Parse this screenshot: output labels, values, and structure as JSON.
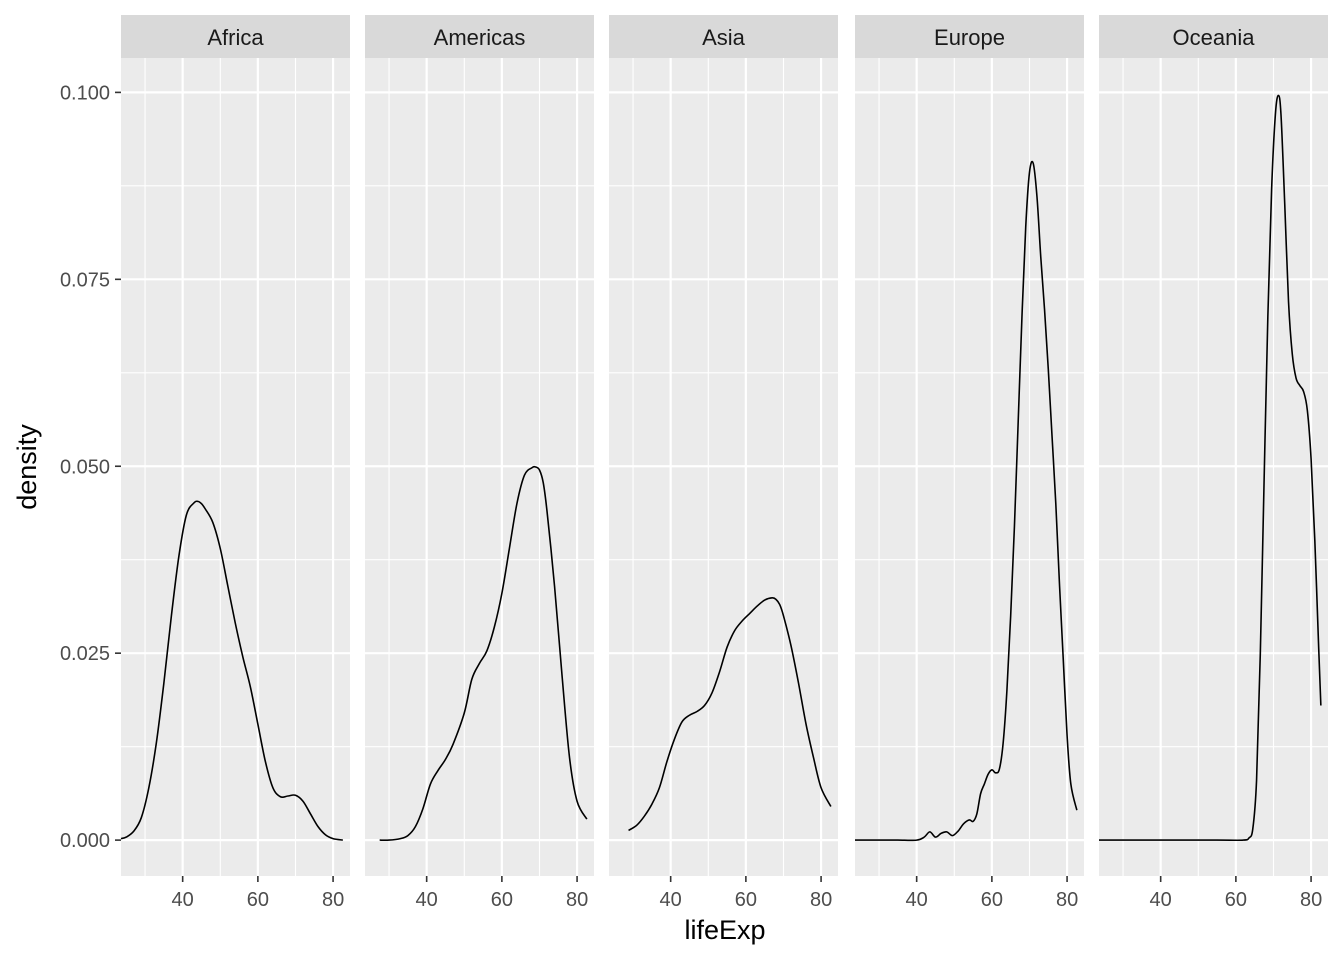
{
  "chart_data": {
    "type": "line",
    "facet_by": "continent",
    "xlabel": "lifeExp",
    "ylabel": "density",
    "xlim": [
      23.6,
      84.5
    ],
    "ylim": [
      -0.0048,
      0.1046
    ],
    "x_ticks": [
      40,
      60,
      80
    ],
    "x_tick_labels": [
      "40",
      "60",
      "80"
    ],
    "x_minor_ticks": [
      30,
      50,
      70
    ],
    "y_ticks": [
      0,
      0.025,
      0.05,
      0.075,
      0.1
    ],
    "y_tick_labels": [
      "0.000",
      "0.025",
      "0.050",
      "0.075",
      "0.100"
    ],
    "y_minor_ticks": [
      0.0125,
      0.0375,
      0.0625,
      0.0875
    ],
    "grid": true,
    "colors": {
      "panel": "#ebebeb",
      "strip": "#d9d9d9",
      "grid": "#ffffff",
      "line": "#000000"
    },
    "facets": [
      {
        "name": "Africa",
        "x": [
          23.6,
          25,
          27,
          29,
          31,
          33,
          35,
          37,
          39,
          41,
          43,
          44,
          45,
          46,
          48,
          50,
          52,
          54,
          56,
          58,
          60,
          62,
          64,
          66,
          68,
          70,
          72,
          74,
          76,
          78,
          80,
          82.6
        ],
        "y": [
          0.0002,
          0.0004,
          0.0012,
          0.003,
          0.007,
          0.013,
          0.021,
          0.03,
          0.038,
          0.0435,
          0.0451,
          0.0453,
          0.045,
          0.0443,
          0.0425,
          0.039,
          0.034,
          0.029,
          0.0245,
          0.0205,
          0.0155,
          0.0105,
          0.007,
          0.0058,
          0.0059,
          0.006,
          0.0052,
          0.0035,
          0.0018,
          0.0007,
          0.0002,
          0.0
        ]
      },
      {
        "name": "Americas",
        "x": [
          27.5,
          30,
          33,
          35,
          37,
          39,
          41,
          43,
          45,
          47,
          50,
          52,
          54,
          56,
          58,
          60,
          62,
          64,
          66,
          68,
          69,
          70,
          71,
          72,
          74,
          76,
          78,
          80,
          82.6
        ],
        "y": [
          0.0,
          0.0,
          0.0002,
          0.0006,
          0.0018,
          0.0042,
          0.0075,
          0.0093,
          0.0108,
          0.0128,
          0.017,
          0.0215,
          0.0236,
          0.0253,
          0.0285,
          0.033,
          0.039,
          0.045,
          0.0488,
          0.0498,
          0.0499,
          0.0495,
          0.0478,
          0.044,
          0.034,
          0.022,
          0.011,
          0.0052,
          0.0028
        ]
      },
      {
        "name": "Asia",
        "x": [
          28.8,
          31,
          33,
          35,
          37,
          39,
          41,
          43,
          45,
          47,
          49,
          51,
          53,
          55,
          57,
          59,
          61,
          63,
          65,
          67,
          68,
          69,
          70,
          72,
          74,
          76,
          78,
          80,
          82.6
        ],
        "y": [
          0.0013,
          0.002,
          0.0032,
          0.0048,
          0.007,
          0.0105,
          0.0135,
          0.0158,
          0.0167,
          0.0172,
          0.018,
          0.0197,
          0.0225,
          0.0258,
          0.028,
          0.0293,
          0.0303,
          0.0313,
          0.0321,
          0.0324,
          0.0322,
          0.0315,
          0.03,
          0.026,
          0.021,
          0.0155,
          0.011,
          0.007,
          0.0045
        ]
      },
      {
        "name": "Europe",
        "x": [
          23.6,
          30,
          35,
          40,
          42,
          43.5,
          45,
          46.5,
          48,
          49.5,
          51,
          52.5,
          54,
          55,
          56,
          57,
          58,
          59,
          60,
          61,
          62,
          63,
          64,
          65,
          66,
          67,
          68,
          69,
          70,
          71,
          72,
          73,
          74,
          75,
          76,
          77,
          78,
          79,
          80,
          81,
          82.6
        ],
        "y": [
          0.0,
          0.0,
          0.0,
          0.0,
          0.0004,
          0.0011,
          0.0004,
          0.0009,
          0.0011,
          0.0006,
          0.0012,
          0.0022,
          0.0027,
          0.0025,
          0.0035,
          0.0062,
          0.0075,
          0.0088,
          0.0094,
          0.009,
          0.0095,
          0.013,
          0.02,
          0.03,
          0.042,
          0.056,
          0.07,
          0.082,
          0.0893,
          0.0905,
          0.086,
          0.078,
          0.071,
          0.063,
          0.054,
          0.045,
          0.034,
          0.024,
          0.014,
          0.0075,
          0.004
        ]
      },
      {
        "name": "Oceania",
        "x": [
          23.6,
          40,
          55,
          62,
          63.5,
          64.5,
          65.5,
          66.5,
          67.5,
          68.5,
          69.5,
          70.5,
          71.3,
          72,
          73,
          74,
          75,
          76,
          77,
          78,
          79,
          80,
          81,
          82,
          82.6
        ],
        "y": [
          0.0,
          0.0,
          0.0,
          0.0,
          0.0003,
          0.0015,
          0.008,
          0.025,
          0.048,
          0.07,
          0.087,
          0.097,
          0.0996,
          0.097,
          0.085,
          0.072,
          0.065,
          0.0618,
          0.0608,
          0.06,
          0.0575,
          0.051,
          0.04,
          0.026,
          0.018
        ]
      }
    ]
  }
}
